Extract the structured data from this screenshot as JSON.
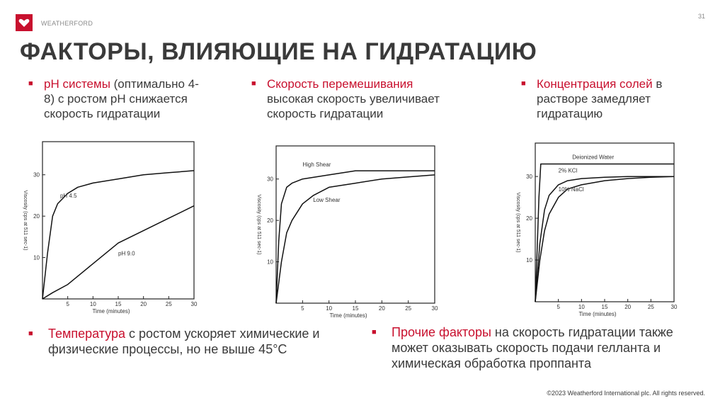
{
  "header": {
    "brand": "WEATHERFORD",
    "page_number": "31",
    "title": "ФАКТОРЫ, ВЛИЯЮЩИЕ НА ГИДРАТАЦИЮ",
    "colors": {
      "accent": "#c8102e",
      "text": "#3a3a3a"
    },
    "logo_icon": "heart-logo-icon"
  },
  "bullets": {
    "ph": {
      "highlight": "pH системы",
      "text": " (оптимально 4-8) с ростом pH снижается скорость гидратации"
    },
    "mixing": {
      "highlight": "Скорость перемешивания",
      "text": " высокая скорость увеличивает скорость гидратации"
    },
    "salt": {
      "highlight": "Концентрация солей",
      "text": " в растворе замедляет гидратацию"
    },
    "temperature": {
      "highlight": "Температура",
      "text": " с ростом ускоряет химические и физические процессы, но не выше 45°C"
    },
    "other": {
      "highlight": "Прочие факторы",
      "text": " на скорость гидратации также может оказывать скорость подачи гелланта и химическая обработка проппанта"
    }
  },
  "chart_data": [
    {
      "type": "line",
      "xlabel": "Time (minutes)",
      "ylabel": "Viscosity (cps at 511 sec-1)",
      "xlim": [
        0,
        30
      ],
      "ylim": [
        0,
        38
      ],
      "xticks": [
        "5",
        "10",
        "15",
        "20",
        "25",
        "30"
      ],
      "yticks": [
        "10",
        "20",
        "30"
      ],
      "series": [
        {
          "name": "pH 4.5",
          "x": [
            0,
            1,
            2,
            3,
            5,
            7,
            10,
            15,
            20,
            25,
            30
          ],
          "y": [
            0,
            11,
            20,
            23,
            25.5,
            27,
            28,
            29,
            30,
            30.5,
            31
          ]
        },
        {
          "name": "pH 9.0",
          "x": [
            0,
            2,
            5,
            10,
            15,
            20,
            25,
            30
          ],
          "y": [
            0,
            1.5,
            3.5,
            8.5,
            13.5,
            16.5,
            19.5,
            22.5
          ]
        }
      ]
    },
    {
      "type": "line",
      "xlabel": "Time (minutes)",
      "ylabel": "Viscosity (cps at 511 sec-1)",
      "xlim": [
        0,
        30
      ],
      "ylim": [
        0,
        38
      ],
      "xticks": [
        "5",
        "10",
        "15",
        "20",
        "25",
        "30"
      ],
      "yticks": [
        "10",
        "20",
        "30"
      ],
      "series": [
        {
          "name": "High Shear",
          "x": [
            0,
            0.5,
            1,
            2,
            3,
            5,
            10,
            15,
            20,
            25,
            30
          ],
          "y": [
            0,
            15,
            24,
            28,
            29,
            30,
            31,
            32,
            32,
            32,
            32
          ]
        },
        {
          "name": "Low Shear",
          "x": [
            0,
            1,
            2,
            3,
            5,
            7,
            10,
            15,
            20,
            25,
            30
          ],
          "y": [
            0,
            10,
            17,
            20,
            24,
            26,
            28,
            29,
            30,
            30.5,
            31
          ]
        }
      ]
    },
    {
      "type": "line",
      "xlabel": "Time (minutes)",
      "ylabel": "Viscosity (cps at 511 sec-1)",
      "xlim": [
        0,
        30
      ],
      "ylim": [
        0,
        38
      ],
      "xticks": [
        "5",
        "10",
        "15",
        "20",
        "25",
        "30"
      ],
      "yticks": [
        "10",
        "20",
        "30"
      ],
      "series": [
        {
          "name": "Deionized Water",
          "x": [
            0,
            0.4,
            0.8,
            1.2,
            30
          ],
          "y": [
            0,
            12,
            25,
            33,
            33
          ]
        },
        {
          "name": "2% KCl",
          "x": [
            0,
            1,
            2,
            3,
            5,
            7,
            10,
            15,
            20,
            25,
            30
          ],
          "y": [
            0,
            14,
            22,
            25.5,
            28,
            29,
            29.5,
            29.8,
            30,
            30,
            30
          ]
        },
        {
          "name": "10% NaCl",
          "x": [
            0,
            1,
            2,
            3,
            5,
            7,
            10,
            15,
            20,
            25,
            30
          ],
          "y": [
            0,
            10,
            17,
            21,
            25,
            27,
            28,
            29,
            29.5,
            29.8,
            30
          ]
        }
      ]
    }
  ],
  "footer": {
    "copyright": "©2023 Weatherford International plc. All rights reserved."
  }
}
